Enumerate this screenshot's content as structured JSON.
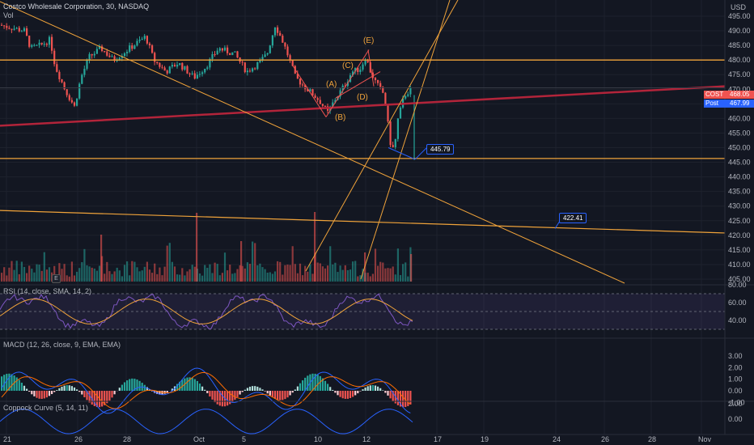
{
  "header": {
    "title": "Costco Wholesale Corporation, 30, NASDAQ",
    "vol_label": "Vol",
    "currency": "USD"
  },
  "price_axis": {
    "ticks": [
      "495.00",
      "490.00",
      "485.00",
      "480.00",
      "475.00",
      "470.00",
      "465.00",
      "460.00",
      "455.00",
      "450.00",
      "445.00",
      "440.00",
      "435.00",
      "430.00",
      "425.00",
      "420.00",
      "415.00",
      "410.00",
      "405.00"
    ],
    "rsi_ticks": [
      "80.00",
      "60.00",
      "40.00"
    ],
    "macd_ticks": [
      "3.00",
      "2.00",
      "1.00",
      "0.00",
      "-1.00"
    ],
    "coppock_ticks": [
      "2.00",
      "0.00"
    ]
  },
  "time_axis": {
    "ticks": [
      "21",
      "26",
      "28",
      "Oct",
      "5",
      "10",
      "12",
      "17",
      "19",
      "24",
      "26",
      "28",
      "Nov"
    ]
  },
  "tags": {
    "symbol": "COST",
    "symbol_price": "468.05",
    "post_label": "Post",
    "post_price": "467.99"
  },
  "callouts": {
    "target1": "445.79",
    "target2": "422.41"
  },
  "waves": [
    "(A)",
    "(B)",
    "(C)",
    "(D)",
    "(E)"
  ],
  "pane_marker": "E",
  "indicators": {
    "rsi": "RSI (14, close, SMA, 14, 2)",
    "macd": "MACD (12, 26, close, 9, EMA, EMA)",
    "coppock": "Coppock Curve (5, 14, 11)"
  },
  "colors": {
    "bg": "#131722",
    "up": "#26a69a",
    "down": "#ef5350",
    "orange": "#f0a33a",
    "darkred": "#b2243a",
    "blue": "#2962ff"
  }
}
